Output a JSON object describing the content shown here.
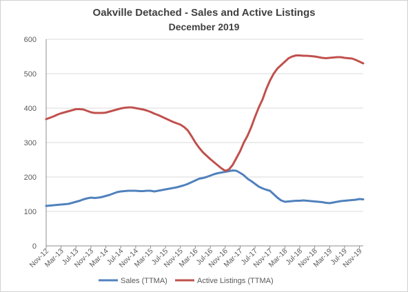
{
  "chart_data": {
    "type": "line",
    "title": "Oakville Detached - Sales and Active Listings",
    "subtitle": "December 2019",
    "xlabel": "",
    "ylabel": "",
    "ylim": [
      0,
      600
    ],
    "yticks": [
      0,
      100,
      200,
      300,
      400,
      500,
      600
    ],
    "grid": "horizontal",
    "legend_position": "bottom",
    "x": [
      "Nov-12",
      "Dec-12",
      "Jan-13",
      "Feb-13",
      "Mar-13",
      "Apr-13",
      "May-13",
      "Jun-13",
      "Jul-13",
      "Aug-13",
      "Sep-13",
      "Oct-13",
      "Nov-13",
      "Dec-13",
      "Jan-14",
      "Feb-14",
      "Mar-14",
      "Apr-14",
      "May-14",
      "Jun-14",
      "Jul-14",
      "Aug-14",
      "Sep-14",
      "Oct-14",
      "Nov-14",
      "Dec-14",
      "Jan-15",
      "Feb-15",
      "Mar-15",
      "Apr-15",
      "May-15",
      "Jun-15",
      "Jul-15",
      "Aug-15",
      "Sep-15",
      "Oct-15",
      "Nov-15",
      "Dec-15",
      "Jan-16",
      "Feb-16",
      "Mar-16",
      "Apr-16",
      "May-16",
      "Jun-16",
      "Jul-16",
      "Aug-16",
      "Sep-16",
      "Oct-16",
      "Nov-16",
      "Dec-16",
      "Jan-17",
      "Feb-17",
      "Mar-17",
      "Apr-17",
      "May-17",
      "Jun-17",
      "Jul-17",
      "Aug-17",
      "Sep-17",
      "Oct-17",
      "Nov-17",
      "Dec-17",
      "Jan-18",
      "Feb-18",
      "Mar-18",
      "Apr-18",
      "May-18",
      "Jun-18",
      "Jul-18",
      "Aug-18",
      "Sep-18",
      "Oct-18",
      "Nov-18",
      "Dec-18",
      "Jan-19",
      "Feb-19",
      "Mar-19",
      "Apr-19",
      "May-19",
      "Jun-19",
      "Jul-19",
      "Aug-19",
      "Sep-19",
      "Oct-19",
      "Nov-19",
      "Dec-19"
    ],
    "tick_labels": [
      "Nov-12",
      "Mar-13",
      "Jul-13",
      "Nov-13",
      "Mar-14",
      "Jul-14",
      "Nov-14",
      "Mar-15",
      "Jul-15",
      "Nov-15",
      "Mar-16",
      "Jul-16",
      "Nov-16",
      "Mar-17",
      "Jul-17",
      "Nov-17",
      "Mar-18",
      "Jul-18",
      "Nov-18",
      "Mar-19",
      "Jul-19",
      "Nov-19"
    ],
    "series": [
      {
        "name": "Sales (TTMA)",
        "color": "#4f81bd",
        "values": [
          116,
          117,
          118,
          119,
          120,
          121,
          122,
          125,
          128,
          131,
          135,
          138,
          140,
          139,
          140,
          142,
          145,
          148,
          152,
          156,
          158,
          159,
          160,
          160,
          160,
          159,
          159,
          160,
          160,
          158,
          160,
          162,
          164,
          166,
          168,
          170,
          173,
          176,
          180,
          185,
          190,
          195,
          197,
          200,
          204,
          208,
          211,
          213,
          215,
          217,
          219,
          218,
          212,
          205,
          195,
          188,
          180,
          172,
          167,
          163,
          160,
          150,
          140,
          132,
          128,
          129,
          130,
          131,
          131,
          132,
          131,
          130,
          129,
          128,
          127,
          125,
          124,
          126,
          128,
          130,
          131,
          132,
          133,
          134,
          136,
          135
        ]
      },
      {
        "name": "Active Listings (TTMA)",
        "color": "#c0504d",
        "values": [
          368,
          372,
          376,
          381,
          385,
          388,
          391,
          394,
          397,
          397,
          396,
          392,
          388,
          386,
          386,
          386,
          387,
          390,
          393,
          396,
          399,
          401,
          402,
          402,
          400,
          398,
          396,
          393,
          389,
          384,
          380,
          375,
          370,
          365,
          360,
          356,
          352,
          345,
          335,
          318,
          300,
          285,
          272,
          262,
          252,
          243,
          234,
          225,
          218,
          222,
          235,
          255,
          275,
          300,
          320,
          345,
          375,
          402,
          425,
          455,
          480,
          500,
          515,
          525,
          535,
          545,
          550,
          553,
          553,
          552,
          552,
          551,
          550,
          548,
          546,
          545,
          546,
          547,
          548,
          548,
          546,
          545,
          544,
          540,
          535,
          530
        ]
      }
    ]
  }
}
